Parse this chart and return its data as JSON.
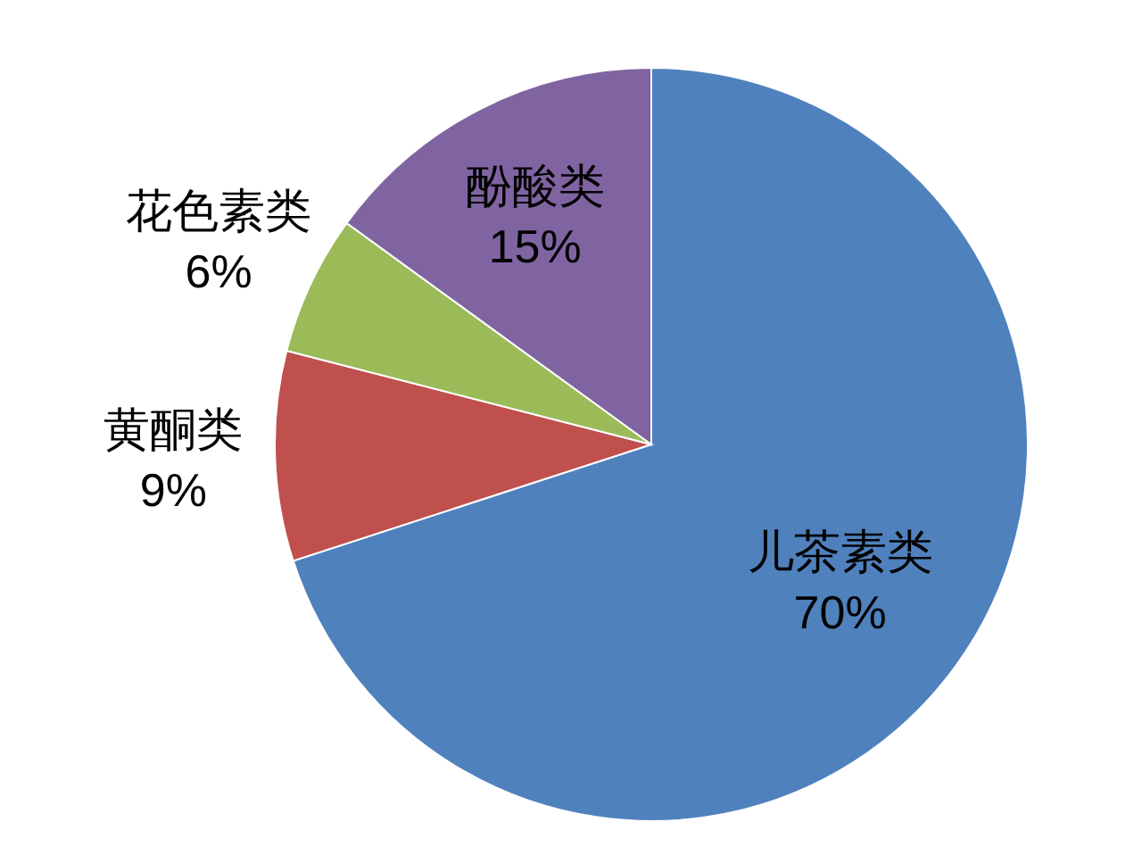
{
  "chart_data": {
    "type": "pie",
    "categories": [
      "儿茶素类",
      "黄酮类",
      "花色素类",
      "酚酸类"
    ],
    "values": [
      70,
      9,
      6,
      15
    ],
    "value_labels": [
      "70%",
      "9%",
      "6%",
      "15%"
    ],
    "colors": [
      "#4f81bd",
      "#c0504d",
      "#9bbb59",
      "#8064a2"
    ],
    "legend": false
  }
}
